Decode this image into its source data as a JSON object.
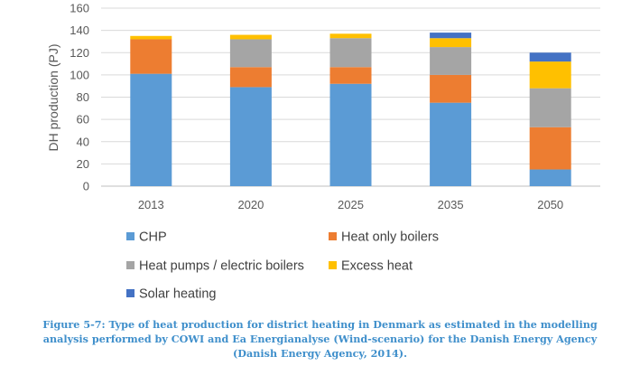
{
  "chart_data": {
    "type": "bar",
    "stacked": true,
    "categories": [
      "2013",
      "2020",
      "2025",
      "2035",
      "2050"
    ],
    "ylabel": "DH production (PJ)",
    "ylim": [
      0,
      160
    ],
    "yticks": [
      0,
      20,
      40,
      60,
      80,
      100,
      120,
      140,
      160
    ],
    "grid": true,
    "legend_position": "bottom",
    "series": [
      {
        "name": "CHP",
        "color": "#5b9bd5",
        "values": [
          101,
          89,
          92,
          75,
          15
        ]
      },
      {
        "name": "Heat only boilers",
        "color": "#ed7d31",
        "values": [
          31,
          18,
          15,
          25,
          38
        ]
      },
      {
        "name": "Heat pumps / electric boilers",
        "color": "#a5a5a5",
        "values": [
          0,
          25,
          26,
          25,
          35
        ]
      },
      {
        "name": "Excess heat",
        "color": "#ffc000",
        "values": [
          3,
          4,
          4,
          8,
          24
        ]
      },
      {
        "name": "Solar heating",
        "color": "#4472c4",
        "values": [
          0,
          0,
          0,
          5,
          8
        ]
      }
    ]
  },
  "caption": {
    "lines": [
      "Figure 5-7: Type of heat production for district heating in Denmark as estimated in the modelling",
      "analysis performed by COWI and Ea Energianalyse  (Wind-scenario) for the Danish Energy Agency",
      "(Danish Energy Agency, 2014)."
    ]
  }
}
